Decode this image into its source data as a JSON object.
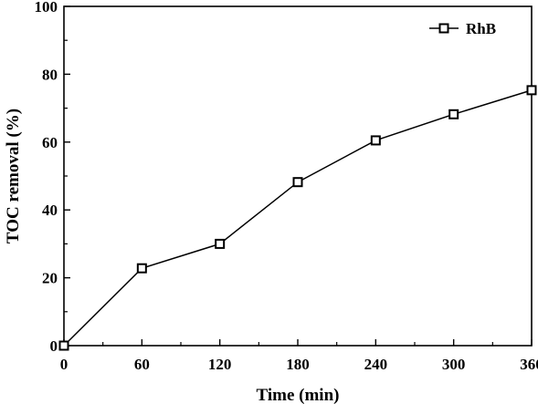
{
  "chart_data": {
    "type": "line",
    "xlabel": "Time (min)",
    "ylabel": "TOC removal (%)",
    "xlim": [
      0,
      360
    ],
    "ylim": [
      0,
      100
    ],
    "x_ticks": [
      0,
      60,
      120,
      180,
      240,
      300,
      360
    ],
    "y_ticks": [
      0,
      20,
      40,
      60,
      80,
      100
    ],
    "grid": false,
    "legend_position": "top-right",
    "series": [
      {
        "name": "RhB",
        "marker": "open-square",
        "color": "#000000",
        "x": [
          0,
          60,
          120,
          180,
          240,
          300,
          360
        ],
        "y": [
          0,
          22.8,
          30.0,
          48.2,
          60.5,
          68.2,
          75.3
        ]
      }
    ]
  }
}
